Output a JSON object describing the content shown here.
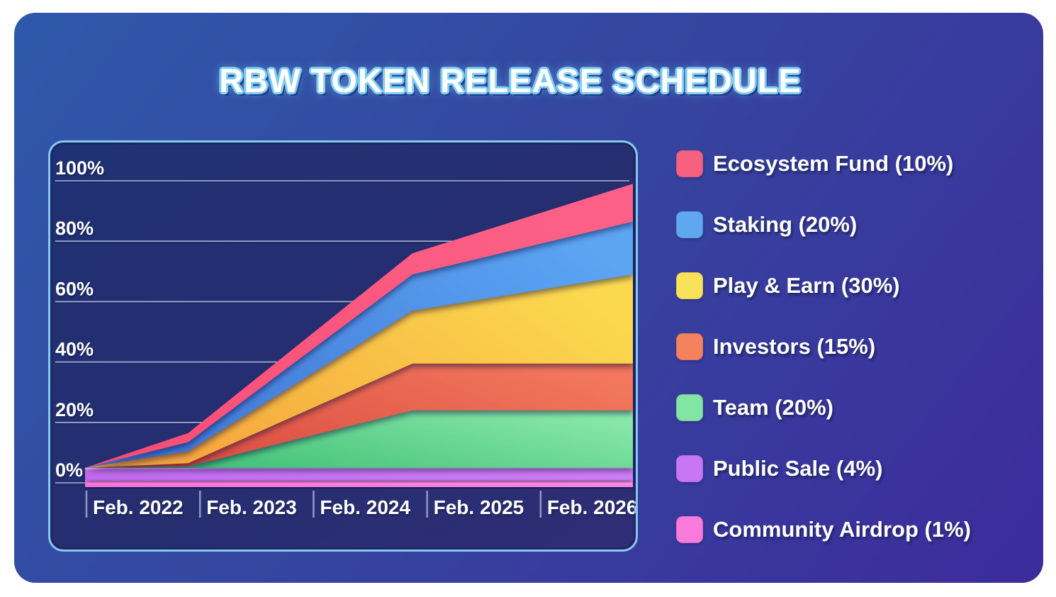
{
  "title": "RBW TOKEN RELEASE SCHEDULE",
  "colors": {
    "page_background": "#FFFFFF",
    "card_gradient": [
      "#2F59AA",
      "#35459F",
      "#3D2B9C"
    ],
    "panel_gradient": [
      "#1F3174",
      "#262E70",
      "#2F2D76"
    ],
    "panel_border": "#84C8F0",
    "grid_line": "#DCE4FA",
    "tick_line": "#C9D3F0",
    "text": "#FFFFFF",
    "title_glow": "#7ECDF4",
    "band_shadow": "#0A1030"
  },
  "chart_data": {
    "type": "area",
    "stacked": true,
    "title": "RBW TOKEN RELEASE SCHEDULE",
    "grid": true,
    "legend_position": "right",
    "x_axis": {
      "tick_labels": [
        "Feb. 2022",
        "Feb. 2023",
        "Feb. 2024",
        "Feb. 2025",
        "Feb. 2026"
      ],
      "tick_months": [
        0,
        12,
        24,
        36,
        48
      ],
      "start_label": "Feb. 2022",
      "end_month": 57.9
    },
    "y_axis": {
      "tick_labels": [
        "100%",
        "80%",
        "60%",
        "40%",
        "20%",
        "0%"
      ],
      "tick_values": [
        100,
        80,
        60,
        40,
        20,
        0
      ],
      "ylim": [
        0,
        100
      ],
      "unit": "%"
    },
    "breakpoint_months": [
      0,
      10.9,
      34.6,
      57.9
    ],
    "series": [
      {
        "name": "Community Airdrop",
        "allocation_pct": 1,
        "cumulative_top_pct": [
          1,
          1,
          1,
          1
        ],
        "color_from": "#F671DB",
        "color_to": "#FA8BE5",
        "top_highlight": "#FFB3F0"
      },
      {
        "name": "Public Sale",
        "allocation_pct": 4,
        "cumulative_top_pct": [
          5,
          5,
          5,
          5
        ],
        "color_from": "#C369F1",
        "color_to": "#D083F8",
        "top_highlight": "#E8B5FB"
      },
      {
        "name": "Team",
        "allocation_pct": 20,
        "cumulative_top_pct": [
          5,
          5.5,
          24,
          24
        ],
        "color_from": "#3CBD72",
        "color_to": "#87E7A9"
      },
      {
        "name": "Investors",
        "allocation_pct": 15,
        "cumulative_top_pct": [
          5,
          6.5,
          39.5,
          39.5
        ],
        "color_from": "#D84940",
        "color_to": "#F2775C"
      },
      {
        "name": "Play & Earn",
        "allocation_pct": 30,
        "cumulative_top_pct": [
          5,
          10.5,
          57,
          69
        ],
        "color_from": "#F5A23C",
        "color_to": "#FBD94F"
      },
      {
        "name": "Staking",
        "allocation_pct": 20,
        "cumulative_top_pct": [
          5,
          13.5,
          69,
          86.5
        ],
        "color_from": "#3F74D3",
        "color_to": "#5BA5F3"
      },
      {
        "name": "Ecosystem Fund",
        "allocation_pct": 10,
        "cumulative_top_pct": [
          5,
          16.5,
          76,
          99
        ],
        "color_from": "#F94E77",
        "color_to": "#FC6187"
      }
    ],
    "legend": [
      {
        "label": "Ecosystem Fund (10%)",
        "color": "#F6607F"
      },
      {
        "label": "Staking (20%)",
        "color": "#5FA8F0"
      },
      {
        "label": "Play & Earn (30%)",
        "color": "#F8E25A"
      },
      {
        "label": "Investors (15%)",
        "color": "#F4825F"
      },
      {
        "label": "Team (20%)",
        "color": "#83E5A3"
      },
      {
        "label": "Public Sale (4%)",
        "color": "#C876F4"
      },
      {
        "label": "Community Airdrop (1%)",
        "color": "#F87BDC"
      }
    ]
  }
}
